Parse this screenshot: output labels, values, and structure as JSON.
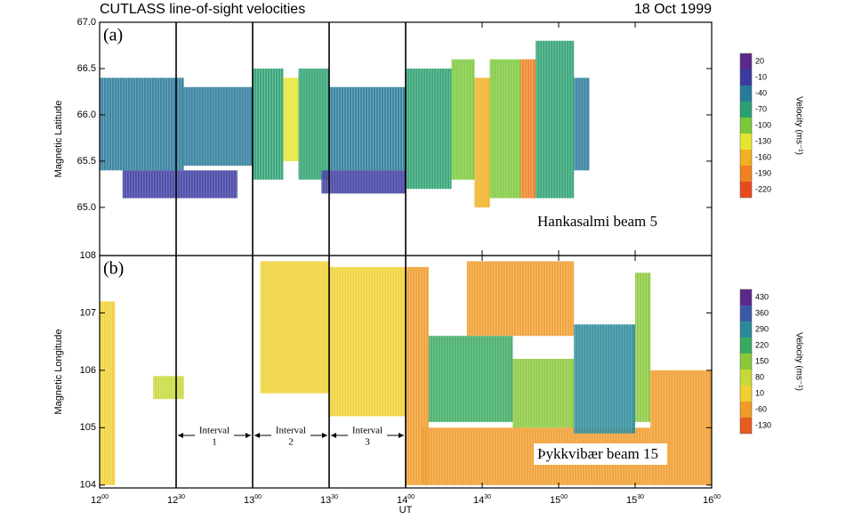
{
  "chart_data": [
    {
      "type": "heatmap",
      "title": "CUTLASS line-of-sight velocities",
      "date": "18 Oct 1999",
      "panel_label": "(a)",
      "annotation": "Hankasalmi beam 5",
      "ylabel": "Magnetic Latitude",
      "xlim": [
        12,
        16
      ],
      "ylim": [
        64.48,
        67.0
      ],
      "yticks": [
        {
          "value": 65,
          "label": "65.0"
        },
        {
          "value": 65.5,
          "label": "65.5"
        },
        {
          "value": 66,
          "label": "66.0"
        },
        {
          "value": 66.5,
          "label": "66.5"
        },
        {
          "value": 67,
          "label": "67.0"
        }
      ],
      "markers": [
        12.5,
        13.0,
        13.5,
        14.0
      ],
      "colorbar": {
        "label": "Velocity (ms⁻¹)",
        "ticks": [
          20,
          -10,
          -40,
          -70,
          -100,
          -130,
          -160,
          -190,
          -220
        ],
        "colors": [
          "#5a2a8a",
          "#3a3aa0",
          "#2a7a9a",
          "#2aa070",
          "#7ac83a",
          "#e6e630",
          "#f0b020",
          "#f08020",
          "#e84a20"
        ]
      },
      "blocks": [
        [
          12.0,
          12.55,
          65.4,
          66.4,
          -40
        ],
        [
          12.15,
          12.9,
          65.1,
          65.4,
          -10
        ],
        [
          12.55,
          13.0,
          65.45,
          66.3,
          -40
        ],
        [
          13.0,
          13.2,
          65.3,
          66.5,
          -70
        ],
        [
          13.2,
          13.3,
          65.5,
          66.4,
          -130
        ],
        [
          13.3,
          13.5,
          65.3,
          66.5,
          -70
        ],
        [
          13.5,
          14.0,
          65.4,
          66.3,
          -40
        ],
        [
          13.45,
          14.0,
          65.15,
          65.4,
          -10
        ],
        [
          14.0,
          14.3,
          65.2,
          66.5,
          -70
        ],
        [
          14.3,
          14.45,
          65.3,
          66.6,
          -100
        ],
        [
          14.45,
          14.55,
          65.0,
          66.4,
          -160
        ],
        [
          14.55,
          14.75,
          65.1,
          66.6,
          -100
        ],
        [
          14.75,
          14.85,
          65.1,
          66.6,
          -190
        ],
        [
          14.85,
          15.1,
          65.1,
          66.8,
          -70
        ],
        [
          15.1,
          15.2,
          65.4,
          66.4,
          -40
        ]
      ]
    },
    {
      "type": "heatmap",
      "panel_label": "(b)",
      "annotation": "Þykkvibær beam 15",
      "ylabel": "Magnetic Longitude",
      "xlabel": "UT",
      "xlim": [
        12,
        16
      ],
      "ylim": [
        103.95,
        108
      ],
      "xticks": [
        {
          "value": 12,
          "label": "12",
          "sup": "00"
        },
        {
          "value": 12.5,
          "label": "12",
          "sup": "30"
        },
        {
          "value": 13,
          "label": "13",
          "sup": "00"
        },
        {
          "value": 13.5,
          "label": "13",
          "sup": "30"
        },
        {
          "value": 14,
          "label": "14",
          "sup": "00"
        },
        {
          "value": 14.5,
          "label": "14",
          "sup": "30"
        },
        {
          "value": 15,
          "label": "15",
          "sup": "00"
        },
        {
          "value": 15.5,
          "label": "15",
          "sup": "30"
        },
        {
          "value": 16,
          "label": "16",
          "sup": "00"
        }
      ],
      "yticks": [
        104,
        105,
        106,
        107,
        108
      ],
      "markers": [
        12.5,
        13.0,
        13.5,
        14.0
      ],
      "intervals": [
        {
          "label": "Interval",
          "number": "1",
          "start": 12.5,
          "end": 13.0
        },
        {
          "label": "Interval",
          "number": "2",
          "start": 13.0,
          "end": 13.5
        },
        {
          "label": "Interval",
          "number": "3",
          "start": 13.5,
          "end": 14.0
        }
      ],
      "colorbar": {
        "label": "Velocity (ms⁻¹)",
        "ticks": [
          430,
          360,
          290,
          220,
          150,
          80,
          10,
          -60,
          -130
        ],
        "colors": [
          "#5a2a8a",
          "#3a5aa8",
          "#2a8a9a",
          "#3aaa60",
          "#8ac83a",
          "#c8d838",
          "#f0d030",
          "#f09a28",
          "#e85a20"
        ]
      },
      "blocks": [
        [
          12.0,
          12.1,
          104.0,
          107.2,
          10
        ],
        [
          12.35,
          12.55,
          105.5,
          105.9,
          80
        ],
        [
          13.05,
          13.5,
          105.6,
          107.9,
          10
        ],
        [
          13.5,
          14.0,
          105.2,
          107.8,
          10
        ],
        [
          14.0,
          14.15,
          104.0,
          107.8,
          -60
        ],
        [
          14.1,
          15.6,
          104.0,
          105.0,
          -60
        ],
        [
          14.4,
          15.1,
          106.6,
          107.9,
          -60
        ],
        [
          14.15,
          14.7,
          105.1,
          106.6,
          220
        ],
        [
          14.7,
          15.1,
          105.0,
          106.2,
          150
        ],
        [
          15.1,
          15.5,
          104.9,
          106.8,
          290
        ],
        [
          15.5,
          15.6,
          105.1,
          107.7,
          150
        ],
        [
          15.6,
          16.0,
          104.0,
          106.0,
          -60
        ]
      ]
    }
  ]
}
